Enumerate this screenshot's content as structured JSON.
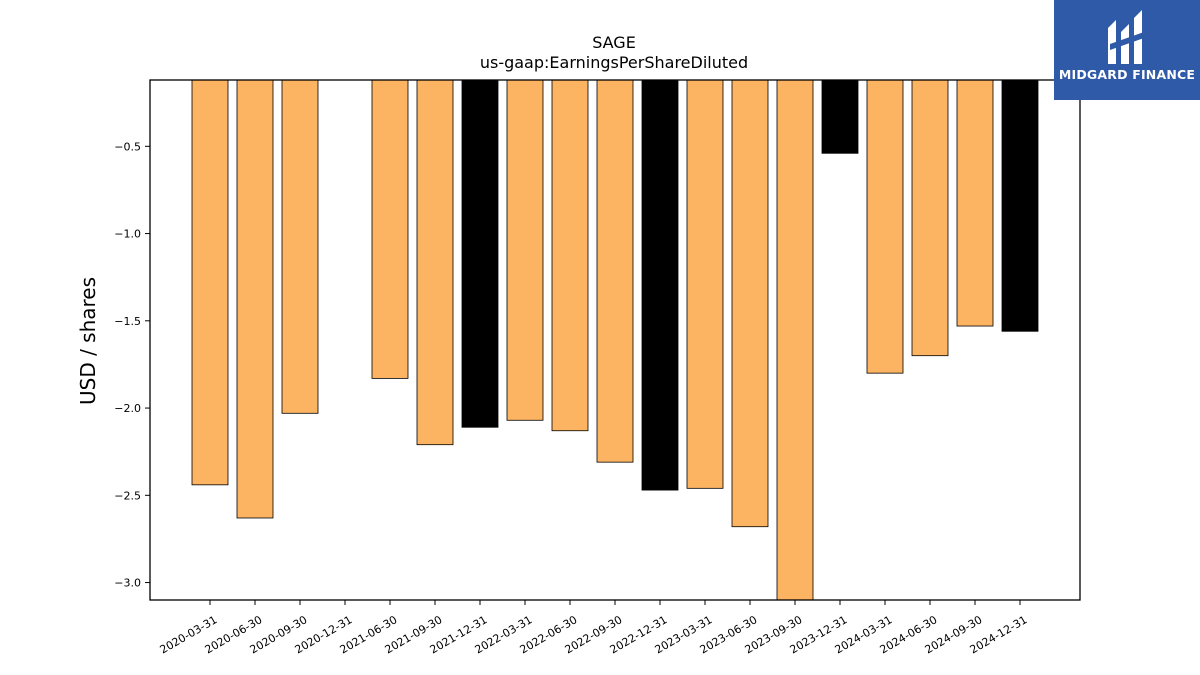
{
  "chart_data": {
    "type": "bar",
    "title": "SAGE",
    "subtitle": "us-gaap:EarningsPerShareDiluted",
    "xlabel": "",
    "ylabel": "USD / shares",
    "ylim": [
      -3.1,
      -0.12
    ],
    "yticks": [
      -0.5,
      -1.0,
      -1.5,
      -2.0,
      -2.5,
      -3.0
    ],
    "ytick_labels": [
      "−0.5",
      "−1.0",
      "−1.5",
      "−2.0",
      "−2.5",
      "−3.0"
    ],
    "categories": [
      "2020-03-31",
      "2020-06-30",
      "2020-09-30",
      "2020-12-31",
      "2021-06-30",
      "2021-09-30",
      "2021-12-31",
      "2022-03-31",
      "2022-06-30",
      "2022-09-30",
      "2022-12-31",
      "2023-03-31",
      "2023-06-30",
      "2023-09-30",
      "2023-12-31",
      "2024-03-31",
      "2024-06-30",
      "2024-09-30",
      "2024-12-31"
    ],
    "values": [
      -2.44,
      -2.63,
      -2.03,
      null,
      -1.83,
      -2.21,
      -2.11,
      -2.07,
      -2.13,
      -2.31,
      -2.47,
      -2.46,
      -2.68,
      -3.1,
      -0.54,
      -1.8,
      -1.7,
      -1.53,
      -1.56
    ],
    "bar_colors": [
      "#fdb462",
      "#fdb462",
      "#fdb462",
      "#fdb462",
      "#fdb462",
      "#fdb462",
      "#000000",
      "#fdb462",
      "#fdb462",
      "#fdb462",
      "#000000",
      "#fdb462",
      "#fdb462",
      "#fdb462",
      "#000000",
      "#fdb462",
      "#fdb462",
      "#fdb462",
      "#000000"
    ],
    "grid": false,
    "legend": "none"
  },
  "logo": {
    "text": "MIDGARD FINANCE",
    "icon": "midgard-logo-icon",
    "background": "#2f5aa7"
  }
}
